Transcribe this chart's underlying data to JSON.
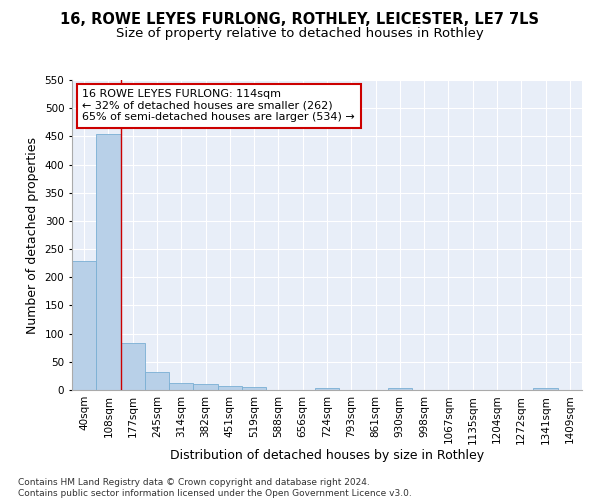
{
  "title": "16, ROWE LEYES FURLONG, ROTHLEY, LEICESTER, LE7 7LS",
  "subtitle": "Size of property relative to detached houses in Rothley",
  "xlabel": "Distribution of detached houses by size in Rothley",
  "ylabel": "Number of detached properties",
  "bar_labels": [
    "40sqm",
    "108sqm",
    "177sqm",
    "245sqm",
    "314sqm",
    "382sqm",
    "451sqm",
    "519sqm",
    "588sqm",
    "656sqm",
    "724sqm",
    "793sqm",
    "861sqm",
    "930sqm",
    "998sqm",
    "1067sqm",
    "1135sqm",
    "1204sqm",
    "1272sqm",
    "1341sqm",
    "1409sqm"
  ],
  "bar_values": [
    228,
    455,
    83,
    32,
    13,
    10,
    7,
    5,
    0,
    0,
    4,
    0,
    0,
    4,
    0,
    0,
    0,
    0,
    0,
    4,
    0
  ],
  "bar_color": "#b8d0e8",
  "bar_edge_color": "#7aafd4",
  "property_line_x": 1.5,
  "property_line_color": "#cc0000",
  "ylim": [
    0,
    550
  ],
  "yticks": [
    0,
    50,
    100,
    150,
    200,
    250,
    300,
    350,
    400,
    450,
    500,
    550
  ],
  "annotation_text": "16 ROWE LEYES FURLONG: 114sqm\n← 32% of detached houses are smaller (262)\n65% of semi-detached houses are larger (534) →",
  "annotation_box_color": "white",
  "annotation_box_edge_color": "#cc0000",
  "footer_text": "Contains HM Land Registry data © Crown copyright and database right 2024.\nContains public sector information licensed under the Open Government Licence v3.0.",
  "background_color": "#e8eef8",
  "grid_color": "#ffffff",
  "title_fontsize": 10.5,
  "subtitle_fontsize": 9.5,
  "tick_fontsize": 7.5,
  "label_fontsize": 9,
  "footer_fontsize": 6.5
}
